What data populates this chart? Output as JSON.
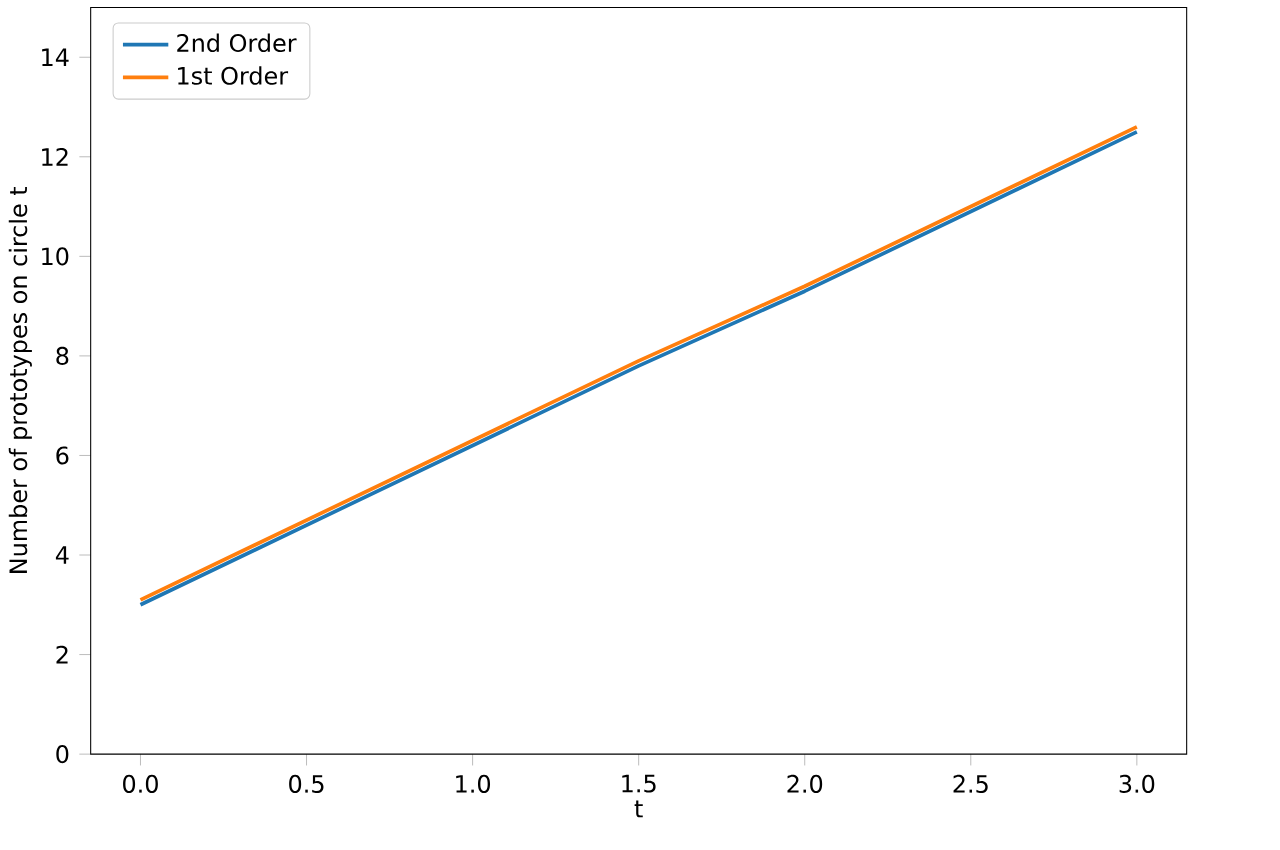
{
  "chart_data": {
    "type": "line",
    "xlabel": "t",
    "ylabel": "Number of prototypes on circle t",
    "x": [
      0,
      0.5,
      1,
      1.5,
      2,
      2.5,
      3
    ],
    "series": [
      {
        "name": "2nd Order",
        "color": "#1f77b4",
        "values": [
          3.0,
          4.6,
          6.2,
          7.8,
          9.3,
          10.9,
          12.5
        ]
      },
      {
        "name": "1st Order",
        "color": "#ff7f0e",
        "values": [
          3.1,
          4.7,
          6.3,
          7.9,
          9.4,
          11.0,
          12.6
        ]
      }
    ],
    "xlim": [
      -0.15,
      3.15
    ],
    "ylim": [
      0,
      15
    ],
    "xticks": [
      {
        "value": 0,
        "label": "0.0"
      },
      {
        "value": 0.5,
        "label": "0.5"
      },
      {
        "value": 1,
        "label": "1.0"
      },
      {
        "value": 1.5,
        "label": "1.5"
      },
      {
        "value": 2,
        "label": "2.0"
      },
      {
        "value": 2.5,
        "label": "2.5"
      },
      {
        "value": 3,
        "label": "3.0"
      }
    ],
    "yticks": [
      0,
      2,
      4,
      6,
      8,
      10,
      12,
      14
    ],
    "legend": "top left",
    "grid": false,
    "marker": "none",
    "line_style": "solid"
  }
}
